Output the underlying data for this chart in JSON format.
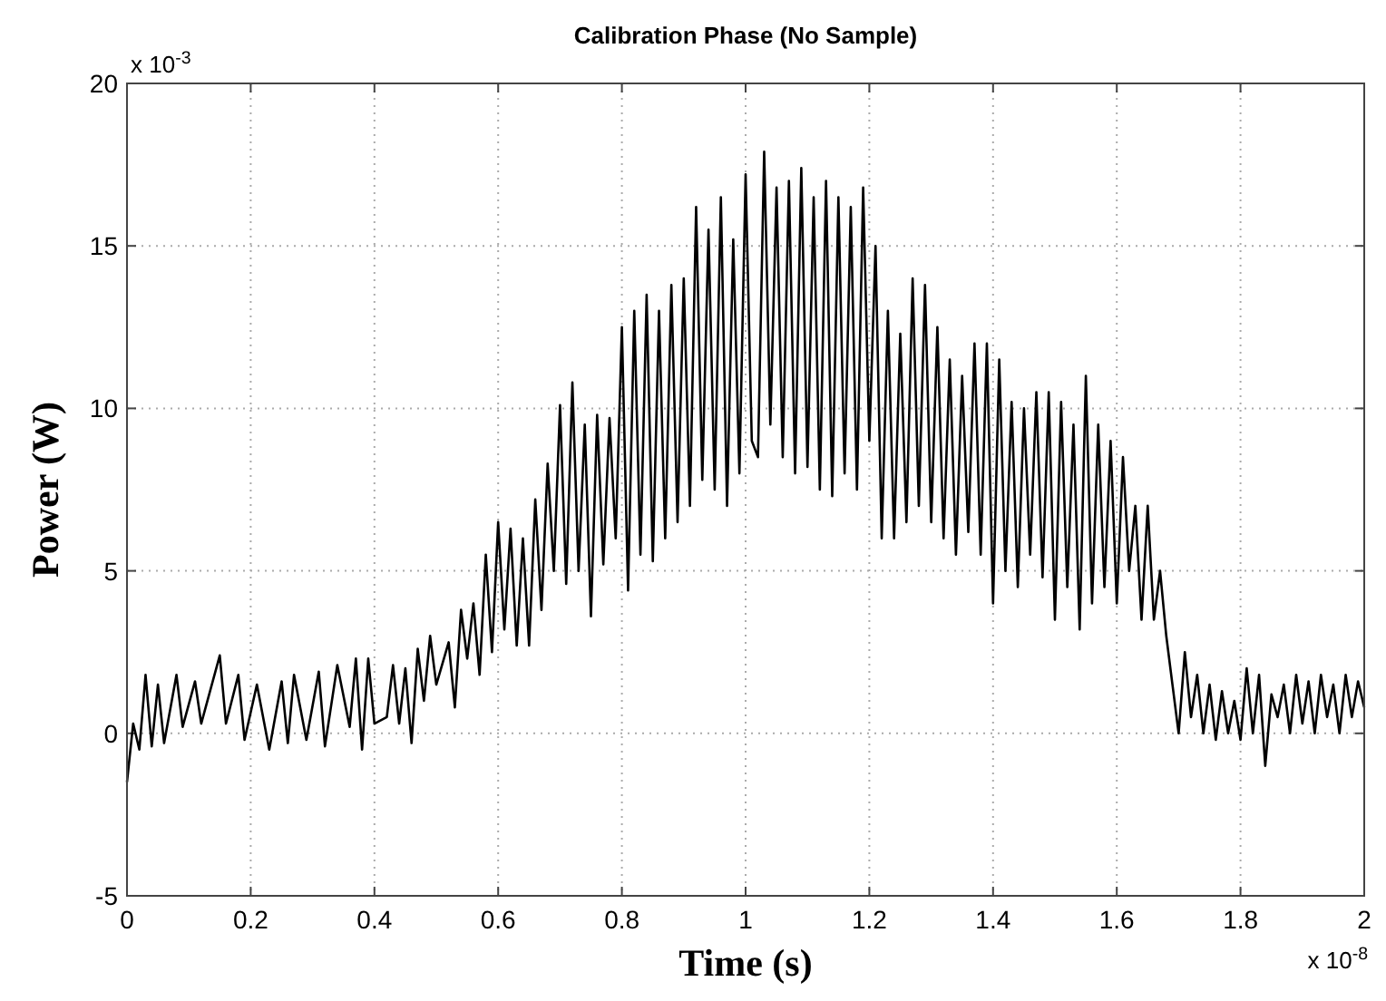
{
  "chart_data": {
    "type": "line",
    "title": "Calibration Phase (No Sample)",
    "xlabel": "Time (s)",
    "ylabel": "Power (W)",
    "annotations": [
      "x 10$^{-3}$",
      "x 10$^{-8}$"
    ],
    "xlim": [
      0,
      2
    ],
    "xticks": [
      0,
      0.2,
      0.4,
      0.6,
      0.8,
      1,
      1.2,
      1.4,
      1.6,
      1.8,
      2
    ],
    "ylim": [
      -5,
      20
    ],
    "yticks": [
      -5,
      0,
      5,
      10,
      15,
      20
    ],
    "grid": true,
    "line_style": "solid",
    "series": [
      {
        "color": "#000000",
        "x": [
          0,
          0.01,
          0.02,
          0.03,
          0.04,
          0.05,
          0.06,
          0.08,
          0.09,
          0.11,
          0.12,
          0.15,
          0.16,
          0.18,
          0.19,
          0.21,
          0.23,
          0.25,
          0.26,
          0.27,
          0.29,
          0.31,
          0.32,
          0.34,
          0.36,
          0.37,
          0.38,
          0.39,
          0.4,
          0.42,
          0.43,
          0.44,
          0.45,
          0.46,
          0.47,
          0.48,
          0.49,
          0.5,
          0.52,
          0.53,
          0.54,
          0.55,
          0.56,
          0.57,
          0.58,
          0.59,
          0.6,
          0.61,
          0.62,
          0.63,
          0.64,
          0.65,
          0.66,
          0.67,
          0.68,
          0.69,
          0.7,
          0.71,
          0.72,
          0.73,
          0.74,
          0.75,
          0.76,
          0.77,
          0.78,
          0.79,
          0.8,
          0.81,
          0.82,
          0.83,
          0.84,
          0.85,
          0.86,
          0.87,
          0.88,
          0.89,
          0.9,
          0.91,
          0.92,
          0.93,
          0.94,
          0.95,
          0.96,
          0.97,
          0.98,
          0.99,
          1,
          1.01,
          1.02,
          1.03,
          1.04,
          1.05,
          1.06,
          1.07,
          1.08,
          1.09,
          1.1,
          1.11,
          1.12,
          1.13,
          1.14,
          1.15,
          1.16,
          1.17,
          1.18,
          1.19,
          1.2,
          1.21,
          1.22,
          1.23,
          1.24,
          1.25,
          1.26,
          1.27,
          1.28,
          1.29,
          1.3,
          1.31,
          1.32,
          1.33,
          1.34,
          1.35,
          1.36,
          1.37,
          1.38,
          1.39,
          1.4,
          1.41,
          1.42,
          1.43,
          1.44,
          1.45,
          1.46,
          1.47,
          1.48,
          1.49,
          1.5,
          1.51,
          1.52,
          1.53,
          1.54,
          1.55,
          1.56,
          1.57,
          1.58,
          1.59,
          1.6,
          1.61,
          1.62,
          1.63,
          1.64,
          1.65,
          1.66,
          1.67,
          1.68,
          1.69,
          1.7,
          1.71,
          1.72,
          1.73,
          1.74,
          1.75,
          1.76,
          1.77,
          1.78,
          1.79,
          1.8,
          1.81,
          1.82,
          1.83,
          1.84,
          1.85,
          1.86,
          1.87,
          1.88,
          1.89,
          1.9,
          1.91,
          1.92,
          1.93,
          1.94,
          1.95,
          1.96,
          1.97,
          1.98,
          1.99,
          2
        ],
        "values": [
          -1.5,
          0.3,
          -0.5,
          1.8,
          -0.4,
          1.5,
          -0.3,
          1.8,
          0.2,
          1.6,
          0.3,
          2.4,
          0.3,
          1.8,
          -0.2,
          1.5,
          -0.5,
          1.6,
          -0.3,
          1.8,
          -0.2,
          1.9,
          -0.4,
          2.1,
          0.2,
          2.3,
          -0.5,
          2.3,
          0.3,
          0.5,
          2.1,
          0.3,
          2,
          -0.3,
          2.6,
          1,
          3,
          1.5,
          2.8,
          0.8,
          3.8,
          2.3,
          4,
          1.8,
          5.5,
          2.5,
          6.5,
          3.2,
          6.3,
          2.7,
          6,
          2.7,
          7.2,
          3.8,
          8.3,
          5,
          10.1,
          4.6,
          10.8,
          5,
          9.5,
          3.6,
          9.8,
          5.2,
          9.7,
          6,
          12.5,
          4.4,
          13,
          5.5,
          13.5,
          5.3,
          13,
          6,
          13.8,
          6.5,
          14,
          7,
          16.2,
          7.8,
          15.5,
          7.5,
          16.5,
          7,
          15.2,
          8,
          17.2,
          9,
          8.5,
          17.9,
          9.5,
          16.8,
          8.5,
          17,
          8,
          17.4,
          8.2,
          16.5,
          7.5,
          17,
          7.3,
          16.5,
          8,
          16.2,
          7.5,
          16.8,
          9,
          15,
          6,
          13,
          6,
          12.3,
          6.5,
          14,
          7,
          13.8,
          6.5,
          12.5,
          6,
          11.5,
          5.5,
          11,
          6.2,
          12,
          5.5,
          12,
          4,
          11.5,
          5,
          10.2,
          4.5,
          10,
          5.5,
          10.5,
          4.8,
          10.5,
          3.5,
          10.2,
          4.5,
          9.5,
          3.2,
          11,
          4,
          9.5,
          4.5,
          9,
          4,
          8.5,
          5,
          7,
          3.5,
          7,
          3.5,
          5,
          3,
          1.5,
          0,
          2.5,
          0.5,
          1.8,
          0,
          1.5,
          -0.2,
          1.3,
          0,
          1,
          -0.2,
          2,
          0,
          1.8,
          -1,
          1.2,
          0.5,
          1.5,
          0,
          1.8,
          0.3,
          1.6,
          0,
          1.8,
          0.5,
          1.5,
          0,
          1.8,
          0.5,
          1.6,
          0.8
        ]
      }
    ]
  }
}
